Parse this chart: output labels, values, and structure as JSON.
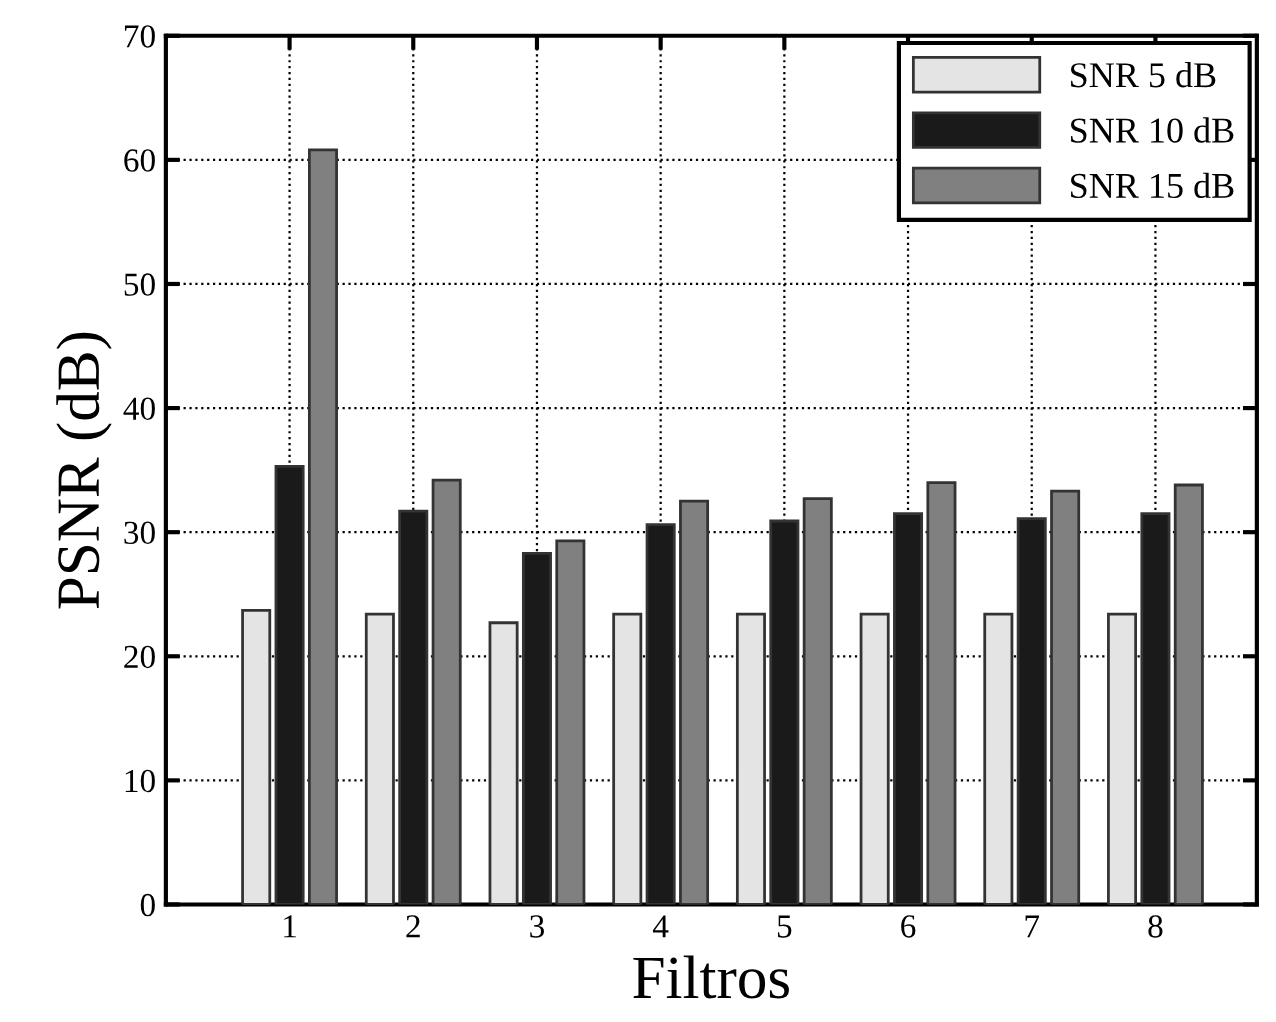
{
  "chart_data": {
    "type": "bar",
    "xlabel": "Filtros",
    "ylabel": "PSNR (dB)",
    "categories": [
      "1",
      "2",
      "3",
      "4",
      "5",
      "6",
      "7",
      "8"
    ],
    "series": [
      {
        "name": "SNR 5 dB",
        "color": "#e4e4e4",
        "values": [
          23.7,
          23.4,
          22.7,
          23.4,
          23.4,
          23.4,
          23.4,
          23.4
        ]
      },
      {
        "name": "SNR 10 dB",
        "color": "#1a1a1a",
        "values": [
          35.3,
          31.7,
          28.3,
          30.6,
          30.9,
          31.5,
          31.1,
          31.5
        ]
      },
      {
        "name": "SNR 15 dB",
        "color": "#808080",
        "values": [
          60.8,
          34.2,
          29.3,
          32.5,
          32.7,
          34.0,
          33.3,
          33.8
        ]
      }
    ],
    "ylim": [
      0,
      70
    ],
    "yticks": [
      0,
      10,
      20,
      30,
      40,
      50,
      60,
      70
    ],
    "grid": true,
    "legend": "top right"
  }
}
